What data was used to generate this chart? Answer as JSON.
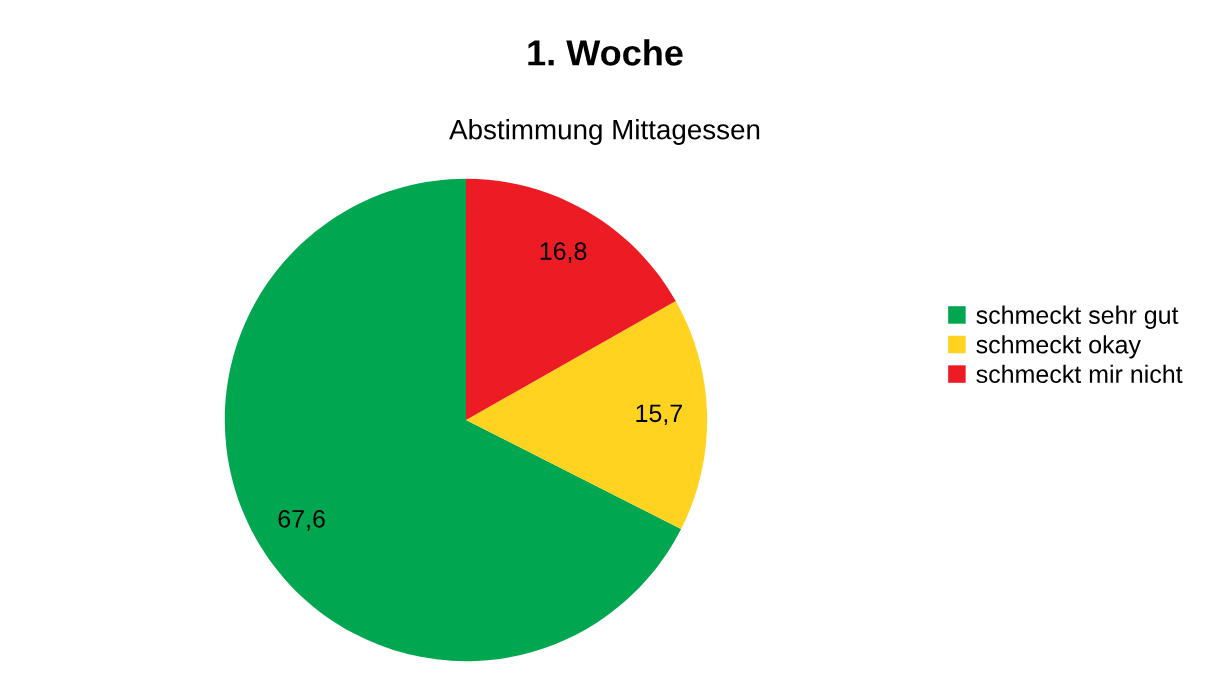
{
  "chart_data": {
    "type": "pie",
    "title": "1. Woche",
    "subtitle": "Abstimmung Mittagessen",
    "categories": [
      "schmeckt sehr gut",
      "schmeckt okay",
      "schmeckt mir nicht"
    ],
    "values": [
      67.6,
      15.7,
      16.8
    ],
    "value_labels": [
      "67,6",
      "15,7",
      "16,8"
    ],
    "colors": [
      "#00a650",
      "#ffd320",
      "#ed1c24"
    ],
    "legend": "right"
  }
}
